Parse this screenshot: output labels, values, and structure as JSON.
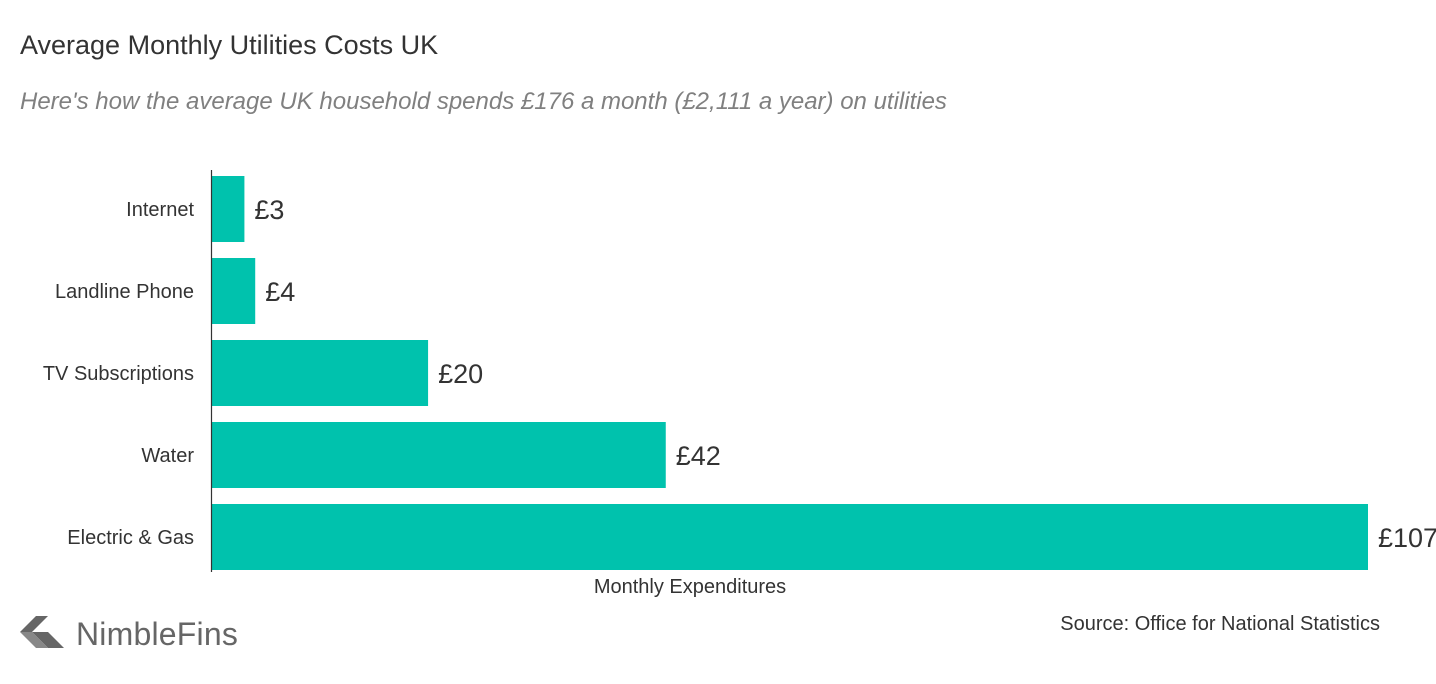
{
  "header": {
    "title": "Average Monthly Utilities Costs UK",
    "subtitle": "Here's how the average UK household spends £176 a month (£2,111 a year) on utilities"
  },
  "footer": {
    "source": "Source: Office for National Statistics",
    "brand": "NimbleFins",
    "logo_icon": "nimblefins-arrow-logo-icon"
  },
  "colors": {
    "bar": "#00C2AD",
    "text": "#333333",
    "subtitle": "#808080",
    "axis": "#333333",
    "logo": "#666666"
  },
  "chart_data": {
    "type": "bar",
    "orientation": "horizontal",
    "categories": [
      "Internet",
      "Landline Phone",
      "TV Subscriptions",
      "Water",
      "Electric & Gas"
    ],
    "values": [
      3,
      4,
      20,
      42,
      107
    ],
    "value_labels": [
      "£3",
      "£4",
      "£20",
      "£42",
      "£107"
    ],
    "title": "Average Monthly Utilities Costs UK",
    "xlabel": "Monthly Expenditures",
    "ylabel": "",
    "xlim": [
      0,
      107
    ],
    "grid": false,
    "legend": "none"
  }
}
